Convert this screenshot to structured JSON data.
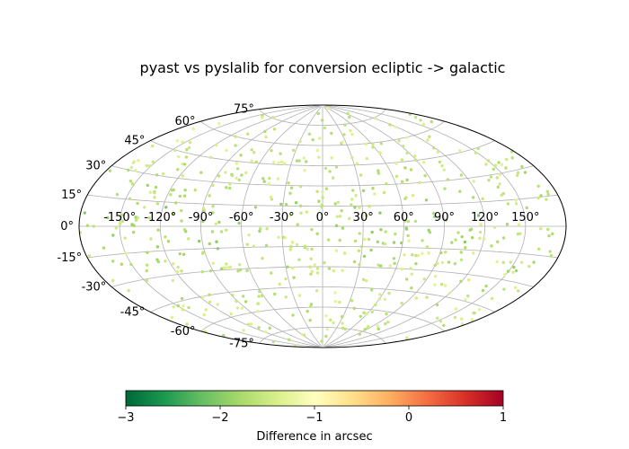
{
  "chart_data": {
    "type": "scatter",
    "projection": "aitoff",
    "title": "pyast vs pyslalib for conversion ecliptic -> galactic",
    "grid": true,
    "longitude_ticks": [
      "-150°",
      "-120°",
      "-90°",
      "-60°",
      "-30°",
      "0°",
      "30°",
      "60°",
      "90°",
      "120°",
      "150°"
    ],
    "latitude_ticks": [
      "-75°",
      "-60°",
      "-45°",
      "-30°",
      "-15°",
      "0°",
      "15°",
      "30°",
      "45°",
      "60°",
      "75°"
    ],
    "longitude_tick_values": [
      -150,
      -120,
      -90,
      -60,
      -30,
      0,
      30,
      60,
      90,
      120,
      150
    ],
    "latitude_tick_values": [
      -75,
      -60,
      -45,
      -30,
      -15,
      0,
      15,
      30,
      45,
      60,
      75
    ],
    "colorbar": {
      "label": "Difference in arcsec",
      "range": [
        -3,
        1
      ],
      "ticks": [
        "−3",
        "−2",
        "−1",
        "0",
        "1"
      ],
      "tick_values": [
        -3,
        -2,
        -1,
        0,
        1
      ],
      "colormap": "RdYlGn_r",
      "stops": [
        "#006837",
        "#1a9850",
        "#66bd63",
        "#a6d96a",
        "#d9ef8b",
        "#ffffbf",
        "#fee08b",
        "#fdae61",
        "#f46d43",
        "#d73027",
        "#a50026"
      ]
    },
    "point_count": 600,
    "value_range_observed": [
      -2.2,
      -1.1
    ]
  }
}
